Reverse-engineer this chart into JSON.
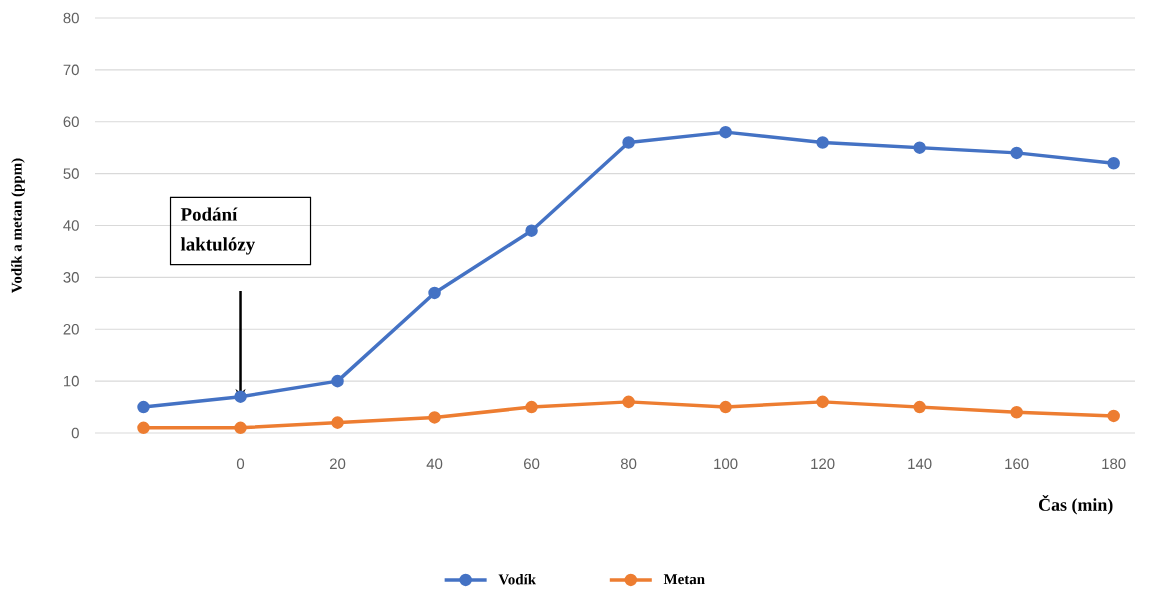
{
  "chart_data": {
    "type": "line",
    "ylabel": "Vodík a metan (ppm)",
    "xlabel": "Čas (min)",
    "categories": [
      null,
      "0",
      "20",
      "40",
      "60",
      "80",
      "100",
      "120",
      "140",
      "160",
      "180"
    ],
    "series": [
      {
        "name": "Vodík",
        "color": "#4472c4",
        "values": [
          5,
          7,
          10,
          27,
          39,
          56,
          58,
          56,
          55,
          54,
          52
        ]
      },
      {
        "name": "Metan",
        "color": "#ed7d31",
        "values": [
          1,
          1,
          2,
          3,
          5,
          6,
          5,
          6,
          5,
          4,
          3.3
        ]
      }
    ],
    "ylim": [
      0,
      80
    ],
    "yticks": [
      0,
      10,
      20,
      30,
      40,
      50,
      60,
      70,
      80
    ],
    "grid": "y",
    "legend": "bottom",
    "marker": "circle",
    "line_style": "solid",
    "annotations": [
      "Podání laktulózy"
    ]
  }
}
